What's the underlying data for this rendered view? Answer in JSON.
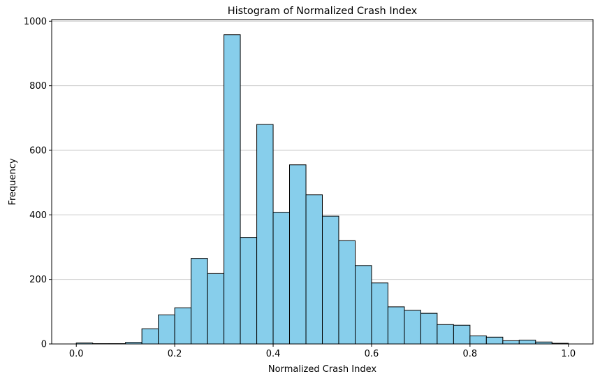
{
  "chart_data": {
    "type": "bar",
    "title": "Histogram of Normalized Crash Index",
    "xlabel": "Normalized Crash Index",
    "ylabel": "Frequency",
    "xlim": [
      -0.05,
      1.05
    ],
    "ylim": [
      0,
      1005
    ],
    "bin_edges": [
      0.0,
      0.0333,
      0.0667,
      0.1,
      0.1333,
      0.1667,
      0.2,
      0.2333,
      0.2667,
      0.3,
      0.3333,
      0.3667,
      0.4,
      0.4333,
      0.4667,
      0.5,
      0.5333,
      0.5667,
      0.6,
      0.6333,
      0.6667,
      0.7,
      0.7333,
      0.7667,
      0.8,
      0.8333,
      0.8667,
      0.9,
      0.9333,
      0.9667,
      1.0
    ],
    "values": [
      3,
      1,
      1,
      5,
      47,
      90,
      112,
      265,
      218,
      958,
      330,
      680,
      408,
      555,
      462,
      396,
      320,
      243,
      189,
      115,
      104,
      95,
      60,
      58,
      25,
      21,
      10,
      12,
      6,
      2
    ],
    "x_ticks": [
      0.0,
      0.2,
      0.4,
      0.6,
      0.8,
      1.0
    ],
    "x_tick_labels": [
      "0.0",
      "0.2",
      "0.4",
      "0.6",
      "0.8",
      "1.0"
    ],
    "y_ticks": [
      0,
      200,
      400,
      600,
      800,
      1000
    ],
    "y_tick_labels": [
      "0",
      "200",
      "400",
      "600",
      "800",
      "1000"
    ],
    "grid": "y-axis only",
    "bar_color": "#87ceeb",
    "edge_color": "#000000"
  }
}
